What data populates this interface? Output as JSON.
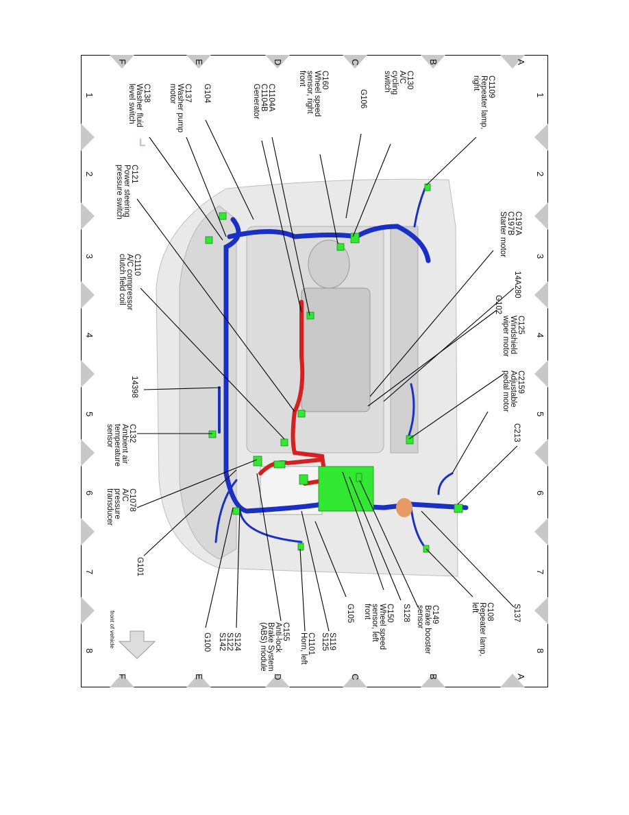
{
  "grid": {
    "rows": [
      "A",
      "B",
      "C",
      "D",
      "E",
      "F"
    ],
    "columns": [
      "1",
      "2",
      "3",
      "4",
      "5",
      "6",
      "7",
      "8"
    ]
  },
  "labels": [
    {
      "id": "c1109",
      "lines": [
        "C1109",
        "Repeater lamp,",
        "right"
      ]
    },
    {
      "id": "c130",
      "lines": [
        "C130",
        "A/C",
        "cycling",
        "switch"
      ]
    },
    {
      "id": "g106",
      "lines": [
        "G106"
      ]
    },
    {
      "id": "c160",
      "lines": [
        "C160",
        "Wheel speed",
        "sensor, right",
        "front"
      ]
    },
    {
      "id": "c1104",
      "lines": [
        "C1104A",
        "C1104B",
        "Generator"
      ]
    },
    {
      "id": "g104",
      "lines": [
        "G104"
      ]
    },
    {
      "id": "c137",
      "lines": [
        "C137",
        "Washer pump",
        "motor"
      ]
    },
    {
      "id": "c138",
      "lines": [
        "C138",
        "Washer fluid",
        "level switch"
      ]
    },
    {
      "id": "c121",
      "lines": [
        "C121",
        "Power steering",
        "pressure switch"
      ]
    },
    {
      "id": "c1110",
      "lines": [
        "C1110",
        "A/C compressor",
        "clutch field coil"
      ]
    },
    {
      "id": "n14398",
      "lines": [
        "14398"
      ]
    },
    {
      "id": "c132",
      "lines": [
        "C132",
        "Ambient air",
        "temperature",
        "sensor"
      ]
    },
    {
      "id": "c1078",
      "lines": [
        "C1078",
        "A/C",
        "pressure",
        "transducer"
      ]
    },
    {
      "id": "g101",
      "lines": [
        "G101"
      ]
    },
    {
      "id": "c197",
      "lines": [
        "C197A",
        "C197B",
        "Starter motor"
      ]
    },
    {
      "id": "n14a280",
      "lines": [
        "14A280"
      ]
    },
    {
      "id": "g102",
      "lines": [
        "G102"
      ]
    },
    {
      "id": "c125",
      "lines": [
        "C125",
        "Windshield",
        "wiper motor"
      ]
    },
    {
      "id": "c2159",
      "lines": [
        "C2159",
        "Adjustable",
        "pedal motor"
      ]
    },
    {
      "id": "c213",
      "lines": [
        "C213"
      ]
    },
    {
      "id": "s137",
      "lines": [
        "S137"
      ]
    },
    {
      "id": "c108",
      "lines": [
        "C108",
        "Repeater lamp,",
        "left"
      ]
    },
    {
      "id": "c149",
      "lines": [
        "C149",
        "Brake booster",
        "sensor"
      ]
    },
    {
      "id": "s128",
      "lines": [
        "S128"
      ]
    },
    {
      "id": "c150",
      "lines": [
        "C150",
        "Wheel speed",
        "sensor, left",
        "front"
      ]
    },
    {
      "id": "g105",
      "lines": [
        "G105"
      ]
    },
    {
      "id": "s119",
      "lines": [
        "S119",
        "S125"
      ]
    },
    {
      "id": "c1101",
      "lines": [
        "C1101",
        "Horn, left"
      ]
    },
    {
      "id": "c155",
      "lines": [
        "C155",
        "Anti-lock",
        "Brake System",
        "(ABS) module"
      ]
    },
    {
      "id": "s124",
      "lines": [
        "S124",
        "S122",
        "S142"
      ]
    },
    {
      "id": "g100",
      "lines": [
        "G100"
      ]
    }
  ],
  "front_indicator": "front of vehicle",
  "colors": {
    "harness": "#1a2fc4",
    "battery_cable": "#d42020",
    "connector": "#33e833",
    "body": "#e6e6e6",
    "grid_marker": "#c8c8c8"
  }
}
